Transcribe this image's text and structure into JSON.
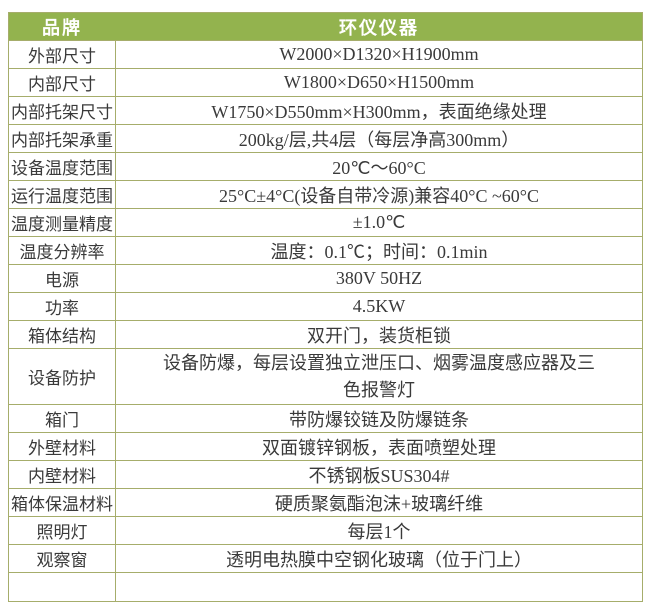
{
  "table": {
    "header": {
      "brand_label": "品牌",
      "brand_value": "环仪仪器"
    },
    "rows": [
      {
        "label": "外部尺寸",
        "value": "W2000×D1320×H1900mm"
      },
      {
        "label": "内部尺寸",
        "value": "W1800×D650×H1500mm"
      },
      {
        "label": "内部托架尺寸",
        "value": "W1750×D550mm×H300mm，表面绝缘处理"
      },
      {
        "label": "内部托架承重",
        "value": "200kg/层,共4层（每层净高300mm）"
      },
      {
        "label": "设备温度范围",
        "value": "20℃～60°C"
      },
      {
        "label": "运行温度范围",
        "value": "25°C±4°C(设备自带冷源)兼容40°C ~60°C"
      },
      {
        "label": "温度测量精度",
        "value": "±1.0℃"
      },
      {
        "label": "温度分辨率",
        "value": "温度：0.1℃；时间：0.1min"
      },
      {
        "label": "电源",
        "value": "380V 50HZ"
      },
      {
        "label": "功率",
        "value": "4.5KW"
      },
      {
        "label": "箱体结构",
        "value": "双开门，装货柜锁"
      },
      {
        "label": "设备防护",
        "value": "设备防爆，每层设置独立泄压口、烟雾温度感应器及三色报警灯"
      },
      {
        "label": "箱门",
        "value": "带防爆铰链及防爆链条"
      },
      {
        "label": "外壁材料",
        "value": "双面镀锌钢板，表面喷塑处理"
      },
      {
        "label": "内壁材料",
        "value": "不锈钢板SUS304#"
      },
      {
        "label": "箱体保温材料",
        "value": "硬质聚氨酯泡沫+玻璃纤维"
      },
      {
        "label": "照明灯",
        "value": "每层1个"
      },
      {
        "label": "观察窗",
        "value": "透明电热膜中空钢化玻璃（位于门上）"
      }
    ],
    "colors": {
      "header_bg": "#93b34e",
      "header_text": "#ffffff",
      "border": "#a6ad6b",
      "text": "#3a3a3a"
    }
  }
}
